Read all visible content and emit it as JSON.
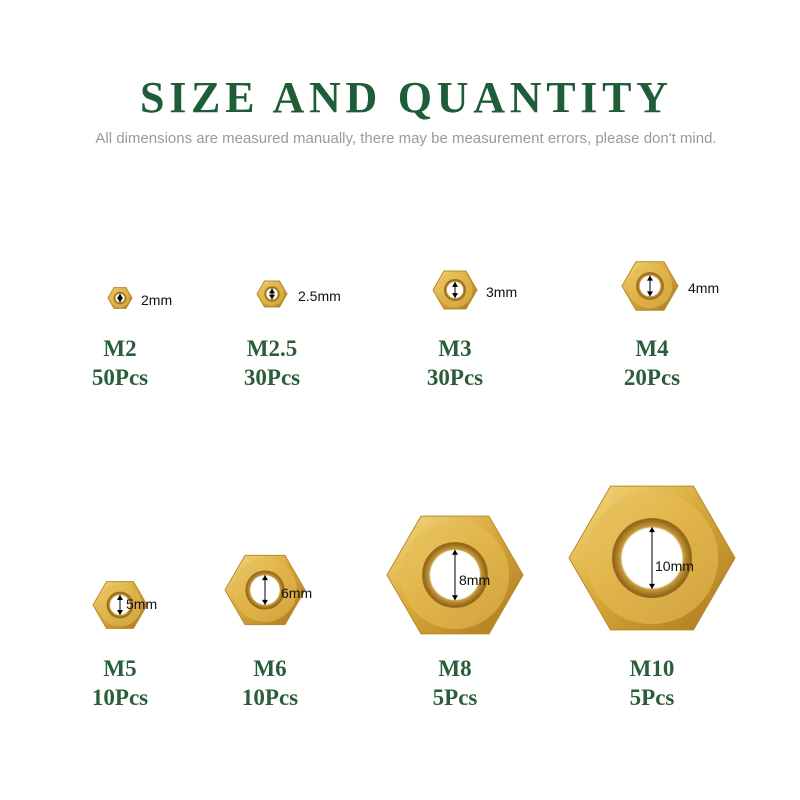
{
  "header": {
    "title": "SIZE AND QUANTITY",
    "subtitle": "All dimensions are measured manually, there may be measurement errors, please don't mind."
  },
  "items": [
    {
      "size": "M2",
      "quantity": "50Pcs",
      "dimension": "2mm"
    },
    {
      "size": "M2.5",
      "quantity": "30Pcs",
      "dimension": "2.5mm"
    },
    {
      "size": "M3",
      "quantity": "30Pcs",
      "dimension": "3mm"
    },
    {
      "size": "M4",
      "quantity": "20Pcs",
      "dimension": "4mm"
    },
    {
      "size": "M5",
      "quantity": "10Pcs",
      "dimension": "5mm"
    },
    {
      "size": "M6",
      "quantity": "10Pcs",
      "dimension": "6mm"
    },
    {
      "size": "M8",
      "quantity": "5Pcs",
      "dimension": "8mm"
    },
    {
      "size": "M10",
      "quantity": "5Pcs",
      "dimension": "10mm"
    }
  ]
}
